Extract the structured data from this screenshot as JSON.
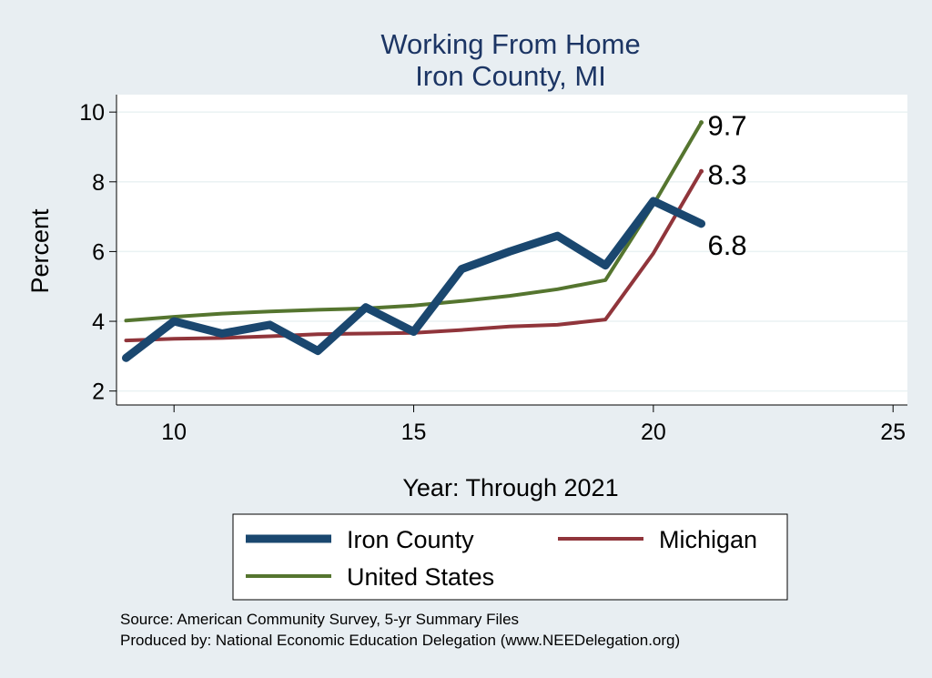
{
  "title_lines": [
    "Working From Home",
    "Iron County, MI"
  ],
  "notes": [
    "Source: American Community Survey, 5-yr Summary Files",
    "Produced by: National Economic Education Delegation (www.NEEDelegation.org)"
  ],
  "chart_data": {
    "type": "line",
    "xlabel": "Year: Through 2021",
    "ylabel": "Percent",
    "xlim": [
      8.8,
      25.3
    ],
    "ylim": [
      1.6,
      10.5
    ],
    "xticks": [
      10,
      15,
      20,
      25
    ],
    "yticks": [
      2,
      4,
      6,
      8,
      10
    ],
    "grid": true,
    "legend_position": "bottom",
    "series": [
      {
        "name": "Iron County",
        "color": "#1a476f",
        "x": [
          9,
          10,
          11,
          12,
          13,
          14,
          15,
          16,
          17,
          18,
          19,
          20,
          21
        ],
        "y": [
          2.95,
          4.0,
          3.65,
          3.9,
          3.15,
          4.4,
          3.7,
          5.5,
          6.0,
          6.45,
          5.6,
          7.45,
          6.8
        ],
        "end_label": "6.8"
      },
      {
        "name": "Michigan",
        "color": "#90353b",
        "x": [
          9,
          10,
          11,
          12,
          13,
          14,
          15,
          16,
          17,
          18,
          19,
          20,
          21
        ],
        "y": [
          3.45,
          3.5,
          3.52,
          3.57,
          3.63,
          3.65,
          3.67,
          3.75,
          3.85,
          3.9,
          4.05,
          5.95,
          8.3
        ],
        "end_label": "8.3"
      },
      {
        "name": "United States",
        "color": "#55752f",
        "x": [
          9,
          10,
          11,
          12,
          13,
          14,
          15,
          16,
          17,
          18,
          19,
          20,
          21
        ],
        "y": [
          4.02,
          4.13,
          4.22,
          4.28,
          4.33,
          4.37,
          4.45,
          4.58,
          4.73,
          4.92,
          5.18,
          7.35,
          9.7
        ],
        "end_label": "9.7"
      }
    ]
  }
}
